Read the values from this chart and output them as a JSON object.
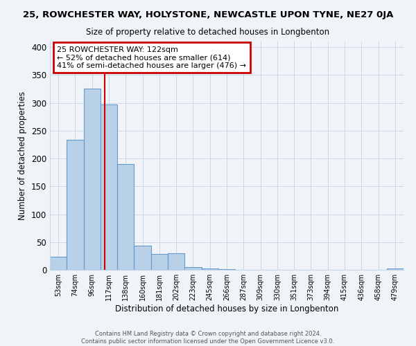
{
  "title": "25, ROWCHESTER WAY, HOLYSTONE, NEWCASTLE UPON TYNE, NE27 0JA",
  "subtitle": "Size of property relative to detached houses in Longbenton",
  "xlabel": "Distribution of detached houses by size in Longbenton",
  "ylabel": "Number of detached properties",
  "bin_labels": [
    "53sqm",
    "74sqm",
    "96sqm",
    "117sqm",
    "138sqm",
    "160sqm",
    "181sqm",
    "202sqm",
    "223sqm",
    "245sqm",
    "266sqm",
    "287sqm",
    "309sqm",
    "330sqm",
    "351sqm",
    "373sqm",
    "394sqm",
    "415sqm",
    "436sqm",
    "458sqm",
    "479sqm"
  ],
  "bar_values": [
    23,
    233,
    325,
    297,
    190,
    43,
    29,
    30,
    5,
    2,
    1,
    0,
    0,
    0,
    0,
    0,
    0,
    0,
    0,
    0,
    3
  ],
  "bar_color": "#b8d0e8",
  "bar_edgecolor": "#6699cc",
  "vline_color": "#cc0000",
  "annotation_title": "25 ROWCHESTER WAY: 122sqm",
  "annotation_line1": "← 52% of detached houses are smaller (614)",
  "annotation_line2": "41% of semi-detached houses are larger (476) →",
  "annotation_box_edgecolor": "#cc0000",
  "ylim": [
    0,
    410
  ],
  "yticks": [
    0,
    50,
    100,
    150,
    200,
    250,
    300,
    350,
    400
  ],
  "footer1": "Contains HM Land Registry data © Crown copyright and database right 2024.",
  "footer2": "Contains public sector information licensed under the Open Government Licence v3.0.",
  "background_color": "#f0f4f8",
  "grid_color": "#c8d8e8"
}
